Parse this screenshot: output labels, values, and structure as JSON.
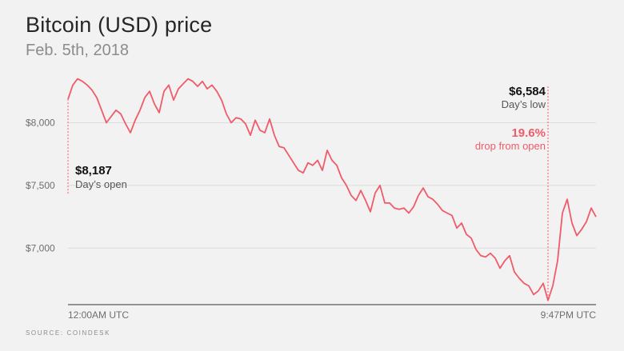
{
  "header": {
    "title": "Bitcoin (USD) price",
    "subtitle": "Feb. 5th, 2018"
  },
  "source": "SOURCE: COINDESK",
  "colors": {
    "line": "#f05b6a",
    "grid": "#dcdcdc",
    "axis": "#333333",
    "background": "#f2f2f2"
  },
  "chart_data": {
    "type": "line",
    "title": "Bitcoin (USD) price",
    "subtitle": "Feb. 5th, 2018",
    "ylim": [
      6550,
      8430
    ],
    "yticks": [
      7000,
      7500,
      8000
    ],
    "ytick_labels": [
      "$7,000",
      "$7,500",
      "$8,000"
    ],
    "x_labels": [
      "12:00AM UTC",
      "9:47PM UTC"
    ],
    "grid": true,
    "series": [
      {
        "x": [
          "12:00AM",
          "12:13AM",
          "12:26AM",
          "12:39AM",
          "12:52AM",
          "1:06AM",
          "1:19AM",
          "1:32AM",
          "1:45AM",
          "1:58AM",
          "2:11AM",
          "2:24AM",
          "2:37AM",
          "2:51AM",
          "3:04AM",
          "3:17AM",
          "3:30AM",
          "3:43AM",
          "3:56AM",
          "4:09AM",
          "4:22AM",
          "4:36AM",
          "4:49AM",
          "5:02AM",
          "5:15AM",
          "5:28AM",
          "5:41AM",
          "5:54AM",
          "6:07AM",
          "6:21AM",
          "6:34AM",
          "6:47AM",
          "7:00AM",
          "7:13AM",
          "7:26AM",
          "7:39AM",
          "7:52AM",
          "8:06AM",
          "8:19AM",
          "8:32AM",
          "8:45AM",
          "8:58AM",
          "9:11AM",
          "9:24AM",
          "9:37AM",
          "9:51AM",
          "10:04AM",
          "10:17AM",
          "10:30AM",
          "10:43AM",
          "10:56AM",
          "11:09AM",
          "11:22AM",
          "11:36AM",
          "11:49AM",
          "12:02PM",
          "12:15PM",
          "12:28PM",
          "12:41PM",
          "12:54PM",
          "1:07PM",
          "1:21PM",
          "1:34PM",
          "1:47PM",
          "2:00PM",
          "2:13PM",
          "2:26PM",
          "2:39PM",
          "2:52PM",
          "3:06PM",
          "3:19PM",
          "3:32PM",
          "3:45PM",
          "3:58PM",
          "4:11PM",
          "4:24PM",
          "4:37PM",
          "4:51PM",
          "5:04PM",
          "5:17PM",
          "5:30PM",
          "5:43PM",
          "5:56PM",
          "6:09PM",
          "6:22PM",
          "6:36PM",
          "6:49PM",
          "7:02PM",
          "7:15PM",
          "7:28PM",
          "7:41PM",
          "7:54PM",
          "8:07PM",
          "8:21PM",
          "8:34PM",
          "8:47PM",
          "9:00PM",
          "9:13PM",
          "9:26PM",
          "9:39PM",
          "9:47PM",
          "10:00PM",
          "10:13PM",
          "10:26PM",
          "10:39PM",
          "10:52PM",
          "11:06PM",
          "11:19PM",
          "11:32PM",
          "11:45PM",
          "11:58PM"
        ],
        "values": [
          8187,
          8300,
          8350,
          8330,
          8300,
          8260,
          8200,
          8100,
          8000,
          8050,
          8100,
          8070,
          7990,
          7920,
          8020,
          8100,
          8200,
          8250,
          8150,
          8080,
          8250,
          8300,
          8180,
          8270,
          8310,
          8350,
          8330,
          8290,
          8330,
          8270,
          8300,
          8250,
          8180,
          8070,
          8000,
          8040,
          8030,
          7990,
          7900,
          8020,
          7940,
          7920,
          8030,
          7900,
          7810,
          7800,
          7740,
          7680,
          7620,
          7600,
          7680,
          7660,
          7700,
          7620,
          7780,
          7700,
          7660,
          7560,
          7500,
          7420,
          7380,
          7460,
          7380,
          7290,
          7440,
          7500,
          7360,
          7360,
          7320,
          7310,
          7320,
          7280,
          7330,
          7420,
          7480,
          7410,
          7390,
          7350,
          7300,
          7280,
          7260,
          7160,
          7200,
          7110,
          7080,
          6990,
          6940,
          6930,
          6960,
          6920,
          6840,
          6900,
          6940,
          6810,
          6760,
          6720,
          6700,
          6630,
          6660,
          6720,
          6584,
          6700,
          6900,
          7280,
          7390,
          7200,
          7100,
          7150,
          7210,
          7320,
          7250
        ]
      }
    ],
    "annotations": [
      {
        "value": "$8,187",
        "label": "Day’s open"
      },
      {
        "value": "$6,584",
        "label": "Day’s low"
      },
      {
        "value": "19.6%",
        "label": "drop from open"
      }
    ]
  }
}
